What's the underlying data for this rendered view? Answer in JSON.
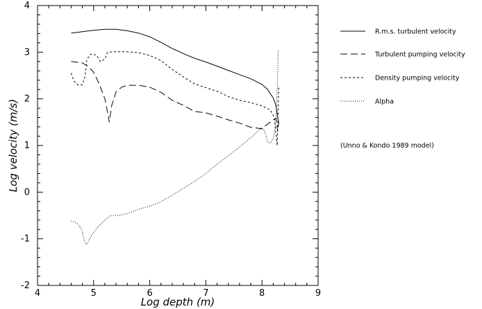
{
  "chart_data": {
    "type": "line",
    "xlabel": "Log depth (m)",
    "ylabel": "Log velocity (m/s)",
    "xlim": [
      4,
      9
    ],
    "ylim": [
      -2,
      4
    ],
    "xticks": [
      "4",
      "5",
      "6",
      "7",
      "8",
      "9"
    ],
    "yticks": [
      "-2",
      "-1",
      "0",
      "1",
      "2",
      "3",
      "4"
    ],
    "grid": false,
    "legend_position": "right",
    "annotation": "(Unno & Kondo 1989 model)",
    "series": [
      {
        "name": "R.m.s. turbulent velocity",
        "style": "solid",
        "points": [
          [
            4.6,
            3.41
          ],
          [
            4.8,
            3.44
          ],
          [
            5.0,
            3.47
          ],
          [
            5.2,
            3.49
          ],
          [
            5.4,
            3.49
          ],
          [
            5.6,
            3.46
          ],
          [
            5.8,
            3.41
          ],
          [
            6.0,
            3.33
          ],
          [
            6.2,
            3.21
          ],
          [
            6.4,
            3.08
          ],
          [
            6.6,
            2.97
          ],
          [
            6.8,
            2.87
          ],
          [
            7.0,
            2.79
          ],
          [
            7.2,
            2.7
          ],
          [
            7.4,
            2.61
          ],
          [
            7.6,
            2.52
          ],
          [
            7.8,
            2.43
          ],
          [
            8.0,
            2.31
          ],
          [
            8.1,
            2.2
          ],
          [
            8.2,
            2.02
          ],
          [
            8.25,
            1.85
          ],
          [
            8.28,
            1.6
          ],
          [
            8.3,
            1.5
          ]
        ]
      },
      {
        "name": "Turbulent pumping velocity",
        "style": "long-dash",
        "points": [
          [
            4.6,
            2.8
          ],
          [
            4.8,
            2.77
          ],
          [
            4.9,
            2.7
          ],
          [
            5.0,
            2.57
          ],
          [
            5.1,
            2.32
          ],
          [
            5.2,
            2.0
          ],
          [
            5.25,
            1.7
          ],
          [
            5.28,
            1.5
          ],
          [
            5.32,
            1.85
          ],
          [
            5.4,
            2.15
          ],
          [
            5.5,
            2.25
          ],
          [
            5.6,
            2.29
          ],
          [
            5.8,
            2.29
          ],
          [
            6.0,
            2.25
          ],
          [
            6.2,
            2.14
          ],
          [
            6.4,
            1.97
          ],
          [
            6.6,
            1.86
          ],
          [
            6.8,
            1.73
          ],
          [
            7.0,
            1.7
          ],
          [
            7.2,
            1.63
          ],
          [
            7.4,
            1.55
          ],
          [
            7.6,
            1.48
          ],
          [
            7.8,
            1.39
          ],
          [
            8.0,
            1.36
          ],
          [
            8.1,
            1.46
          ],
          [
            8.2,
            1.55
          ],
          [
            8.25,
            1.58
          ],
          [
            8.28,
            1.3
          ],
          [
            8.3,
            1.5
          ]
        ]
      },
      {
        "name": "Density pumping velocity",
        "style": "short-dash",
        "points": [
          [
            4.6,
            2.55
          ],
          [
            4.65,
            2.38
          ],
          [
            4.72,
            2.3
          ],
          [
            4.8,
            2.3
          ],
          [
            4.85,
            2.5
          ],
          [
            4.88,
            2.85
          ],
          [
            4.95,
            2.96
          ],
          [
            5.05,
            2.94
          ],
          [
            5.12,
            2.8
          ],
          [
            5.2,
            2.85
          ],
          [
            5.25,
            3.0
          ],
          [
            5.4,
            3.01
          ],
          [
            5.6,
            3.01
          ],
          [
            5.8,
            2.99
          ],
          [
            6.0,
            2.93
          ],
          [
            6.2,
            2.82
          ],
          [
            6.4,
            2.63
          ],
          [
            6.6,
            2.47
          ],
          [
            6.8,
            2.32
          ],
          [
            7.0,
            2.24
          ],
          [
            7.2,
            2.16
          ],
          [
            7.4,
            2.05
          ],
          [
            7.6,
            1.97
          ],
          [
            7.8,
            1.92
          ],
          [
            8.0,
            1.85
          ],
          [
            8.15,
            1.76
          ],
          [
            8.22,
            1.6
          ],
          [
            8.27,
            1.0
          ],
          [
            8.3,
            2.25
          ]
        ]
      },
      {
        "name": "Alpha",
        "style": "dotted",
        "points": [
          [
            4.6,
            -0.62
          ],
          [
            4.7,
            -0.66
          ],
          [
            4.78,
            -0.78
          ],
          [
            4.85,
            -1.1
          ],
          [
            4.88,
            -1.12
          ],
          [
            4.95,
            -0.95
          ],
          [
            5.05,
            -0.78
          ],
          [
            5.2,
            -0.6
          ],
          [
            5.3,
            -0.5
          ],
          [
            5.45,
            -0.5
          ],
          [
            5.6,
            -0.46
          ],
          [
            5.8,
            -0.37
          ],
          [
            6.0,
            -0.3
          ],
          [
            6.2,
            -0.2
          ],
          [
            6.4,
            -0.07
          ],
          [
            6.6,
            0.08
          ],
          [
            6.8,
            0.23
          ],
          [
            7.0,
            0.4
          ],
          [
            7.2,
            0.6
          ],
          [
            7.4,
            0.78
          ],
          [
            7.6,
            0.97
          ],
          [
            7.8,
            1.17
          ],
          [
            8.0,
            1.38
          ],
          [
            8.05,
            1.3
          ],
          [
            8.1,
            1.07
          ],
          [
            8.15,
            1.05
          ],
          [
            8.2,
            1.15
          ],
          [
            8.25,
            1.5
          ],
          [
            8.28,
            2.5
          ],
          [
            8.29,
            3.05
          ]
        ]
      }
    ]
  }
}
